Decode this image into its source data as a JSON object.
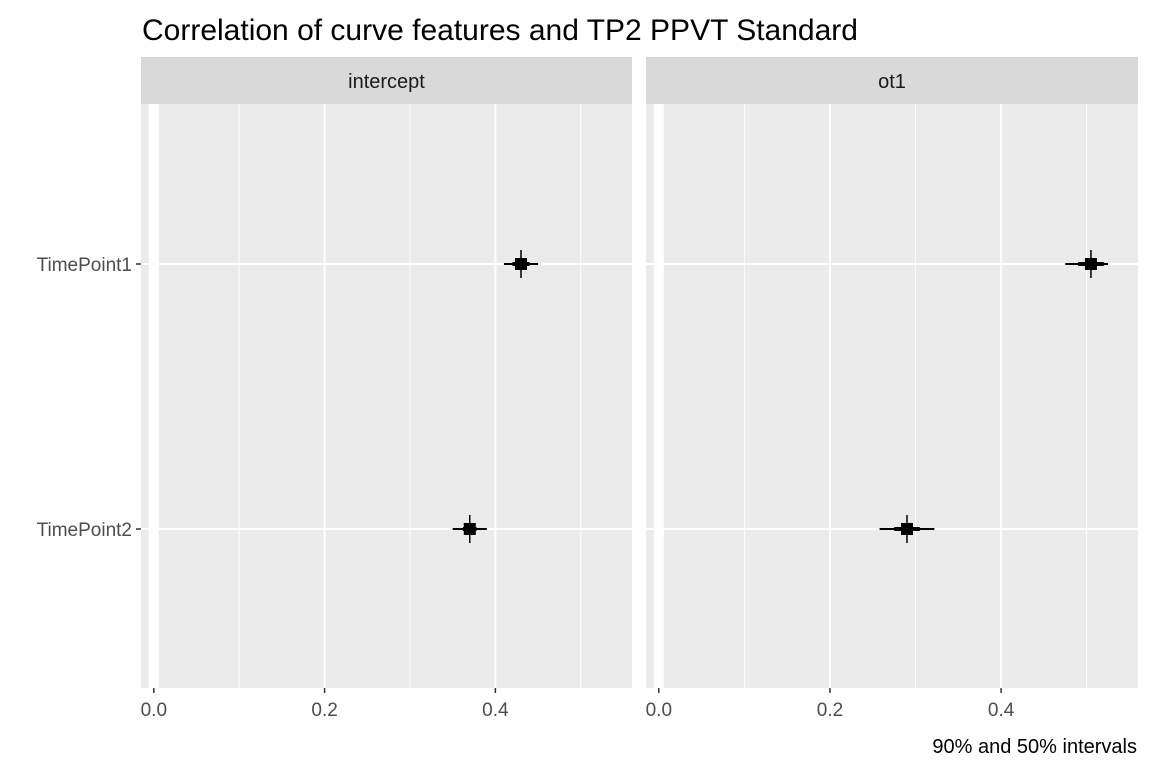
{
  "chart_data": {
    "type": "scatter",
    "title": "Correlation of curve features and TP2 PPVT Standard",
    "caption": "90% and 50% intervals",
    "xlim": [
      -0.015,
      0.56
    ],
    "x_ticks": [
      0.0,
      0.2,
      0.4
    ],
    "x_tick_labels": [
      "0.0",
      "0.2",
      "0.4"
    ],
    "categories": [
      "TimePoint1",
      "TimePoint2"
    ],
    "grid": true,
    "colors": {
      "panel_bg": "#ebebeb",
      "strip_bg": "#d9d9d9",
      "grid": "#ffffff",
      "mark": "#000000",
      "zero_line": "#ffffff"
    },
    "panels": [
      {
        "name": "intercept",
        "points": [
          {
            "category": "TimePoint1",
            "median": 0.43,
            "ci50": [
              0.42,
              0.44
            ],
            "ci90": [
              0.41,
              0.45
            ]
          },
          {
            "category": "TimePoint2",
            "median": 0.37,
            "ci50": [
              0.362,
              0.378
            ],
            "ci90": [
              0.35,
              0.39
            ]
          }
        ]
      },
      {
        "name": "ot1",
        "points": [
          {
            "category": "TimePoint1",
            "median": 0.505,
            "ci50": [
              0.49,
              0.52
            ],
            "ci90": [
              0.475,
              0.525
            ]
          },
          {
            "category": "TimePoint2",
            "median": 0.29,
            "ci50": [
              0.275,
              0.305
            ],
            "ci90": [
              0.258,
              0.322
            ]
          }
        ]
      }
    ]
  }
}
